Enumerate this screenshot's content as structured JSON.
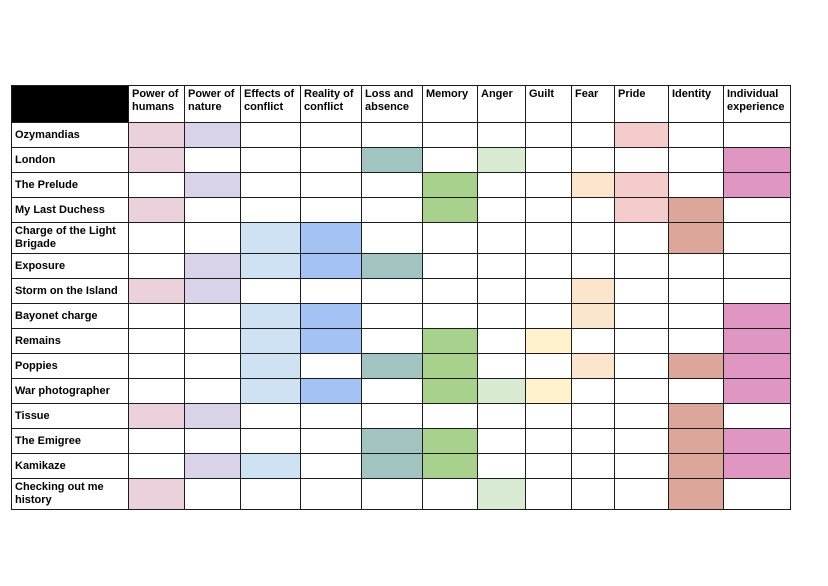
{
  "page": {
    "background": "#ffffff"
  },
  "table": {
    "corner": {
      "label": "",
      "background": "#000000"
    },
    "border_color": "#1c1c1c",
    "columns": [
      {
        "key": "power_humans",
        "label": "Power of humans",
        "color": "#ead1dc"
      },
      {
        "key": "power_nature",
        "label": "Power of nature",
        "color": "#d9d2e9"
      },
      {
        "key": "effects_conflict",
        "label": "Effects of conflict",
        "color": "#cfe2f3"
      },
      {
        "key": "reality_conflict",
        "label": "Reality of conflict",
        "color": "#a4c2f4"
      },
      {
        "key": "loss_absence",
        "label": "Loss and absence",
        "color": "#a2c4c0"
      },
      {
        "key": "memory",
        "label": "Memory",
        "color": "#a9d18e"
      },
      {
        "key": "anger",
        "label": "Anger",
        "color": "#d9ead3"
      },
      {
        "key": "guilt",
        "label": "Guilt",
        "color": "#fff2cc"
      },
      {
        "key": "fear",
        "label": "Fear",
        "color": "#fce5cd"
      },
      {
        "key": "pride",
        "label": "Pride",
        "color": "#f4cccc"
      },
      {
        "key": "identity",
        "label": "Identity",
        "color": "#dda69b"
      },
      {
        "key": "individual_experience",
        "label": "Individual experience",
        "color": "#e096c3"
      }
    ],
    "rows": [
      {
        "poem": "Ozymandias",
        "themes": [
          "power_humans",
          "power_nature",
          "pride"
        ]
      },
      {
        "poem": "London",
        "themes": [
          "power_humans",
          "loss_absence",
          "anger",
          "individual_experience"
        ]
      },
      {
        "poem": "The Prelude",
        "themes": [
          "power_nature",
          "memory",
          "fear",
          "pride",
          "individual_experience"
        ]
      },
      {
        "poem": "My Last Duchess",
        "themes": [
          "power_humans",
          "memory",
          "pride",
          "identity"
        ]
      },
      {
        "poem": "Charge of the Light Brigade",
        "themes": [
          "effects_conflict",
          "reality_conflict",
          "identity"
        ]
      },
      {
        "poem": "Exposure",
        "themes": [
          "power_nature",
          "effects_conflict",
          "reality_conflict",
          "loss_absence"
        ]
      },
      {
        "poem": "Storm on the Island",
        "themes": [
          "power_humans",
          "power_nature",
          "fear"
        ]
      },
      {
        "poem": "Bayonet charge",
        "themes": [
          "effects_conflict",
          "reality_conflict",
          "fear",
          "individual_experience"
        ]
      },
      {
        "poem": "Remains",
        "themes": [
          "effects_conflict",
          "reality_conflict",
          "memory",
          "guilt",
          "individual_experience"
        ]
      },
      {
        "poem": "Poppies",
        "themes": [
          "effects_conflict",
          "loss_absence",
          "memory",
          "fear",
          "identity",
          "individual_experience"
        ]
      },
      {
        "poem": "War photographer",
        "themes": [
          "effects_conflict",
          "reality_conflict",
          "memory",
          "anger",
          "guilt",
          "individual_experience"
        ]
      },
      {
        "poem": "Tissue",
        "themes": [
          "power_humans",
          "power_nature",
          "identity"
        ]
      },
      {
        "poem": "The Emigree",
        "themes": [
          "loss_absence",
          "memory",
          "identity",
          "individual_experience"
        ]
      },
      {
        "poem": "Kamikaze",
        "themes": [
          "power_nature",
          "effects_conflict",
          "loss_absence",
          "memory",
          "identity",
          "individual_experience"
        ]
      },
      {
        "poem": "Checking out me history",
        "themes": [
          "power_humans",
          "anger",
          "identity"
        ]
      }
    ]
  }
}
